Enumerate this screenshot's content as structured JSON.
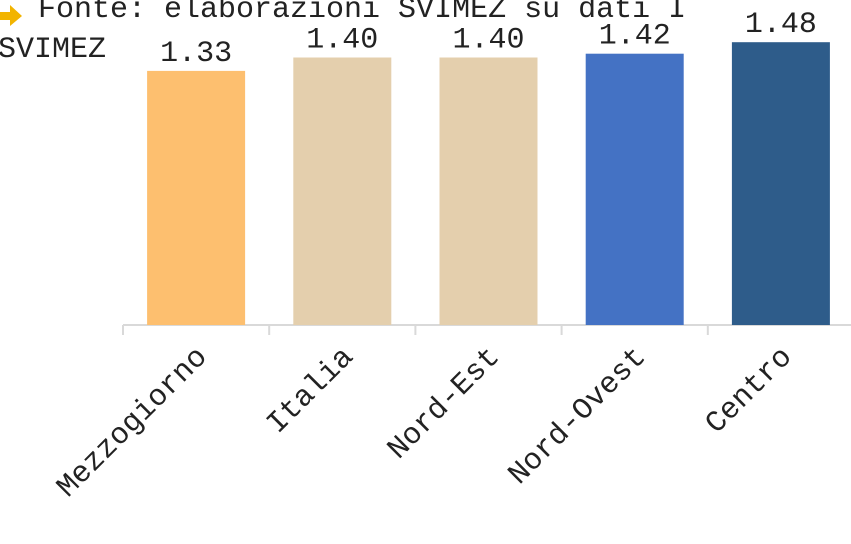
{
  "source": {
    "line1": "Fonte: elaborazioni SVIMEZ su dati I",
    "line2": "SVIMEZ"
  },
  "chart_data": {
    "type": "bar",
    "categories": [
      "Mezzogiorno",
      "Italia",
      "Nord-Est",
      "Nord-Ovest",
      "Centro"
    ],
    "values": [
      1.33,
      1.4,
      1.4,
      1.42,
      1.48
    ],
    "value_labels": [
      "1.33",
      "1.40",
      "1.40",
      "1.42",
      "1.48"
    ],
    "colors": [
      "#FDBF6F",
      "#E4CFAD",
      "#E4CFAD",
      "#4472C4",
      "#2E5C8A"
    ],
    "title": "",
    "xlabel": "",
    "ylabel": "",
    "ylim": [
      0,
      1.57
    ],
    "grid": false,
    "legend": "none"
  },
  "colors": {
    "axis": "#D9D9D9",
    "arrow": "#F2B400",
    "text": "#222222"
  }
}
